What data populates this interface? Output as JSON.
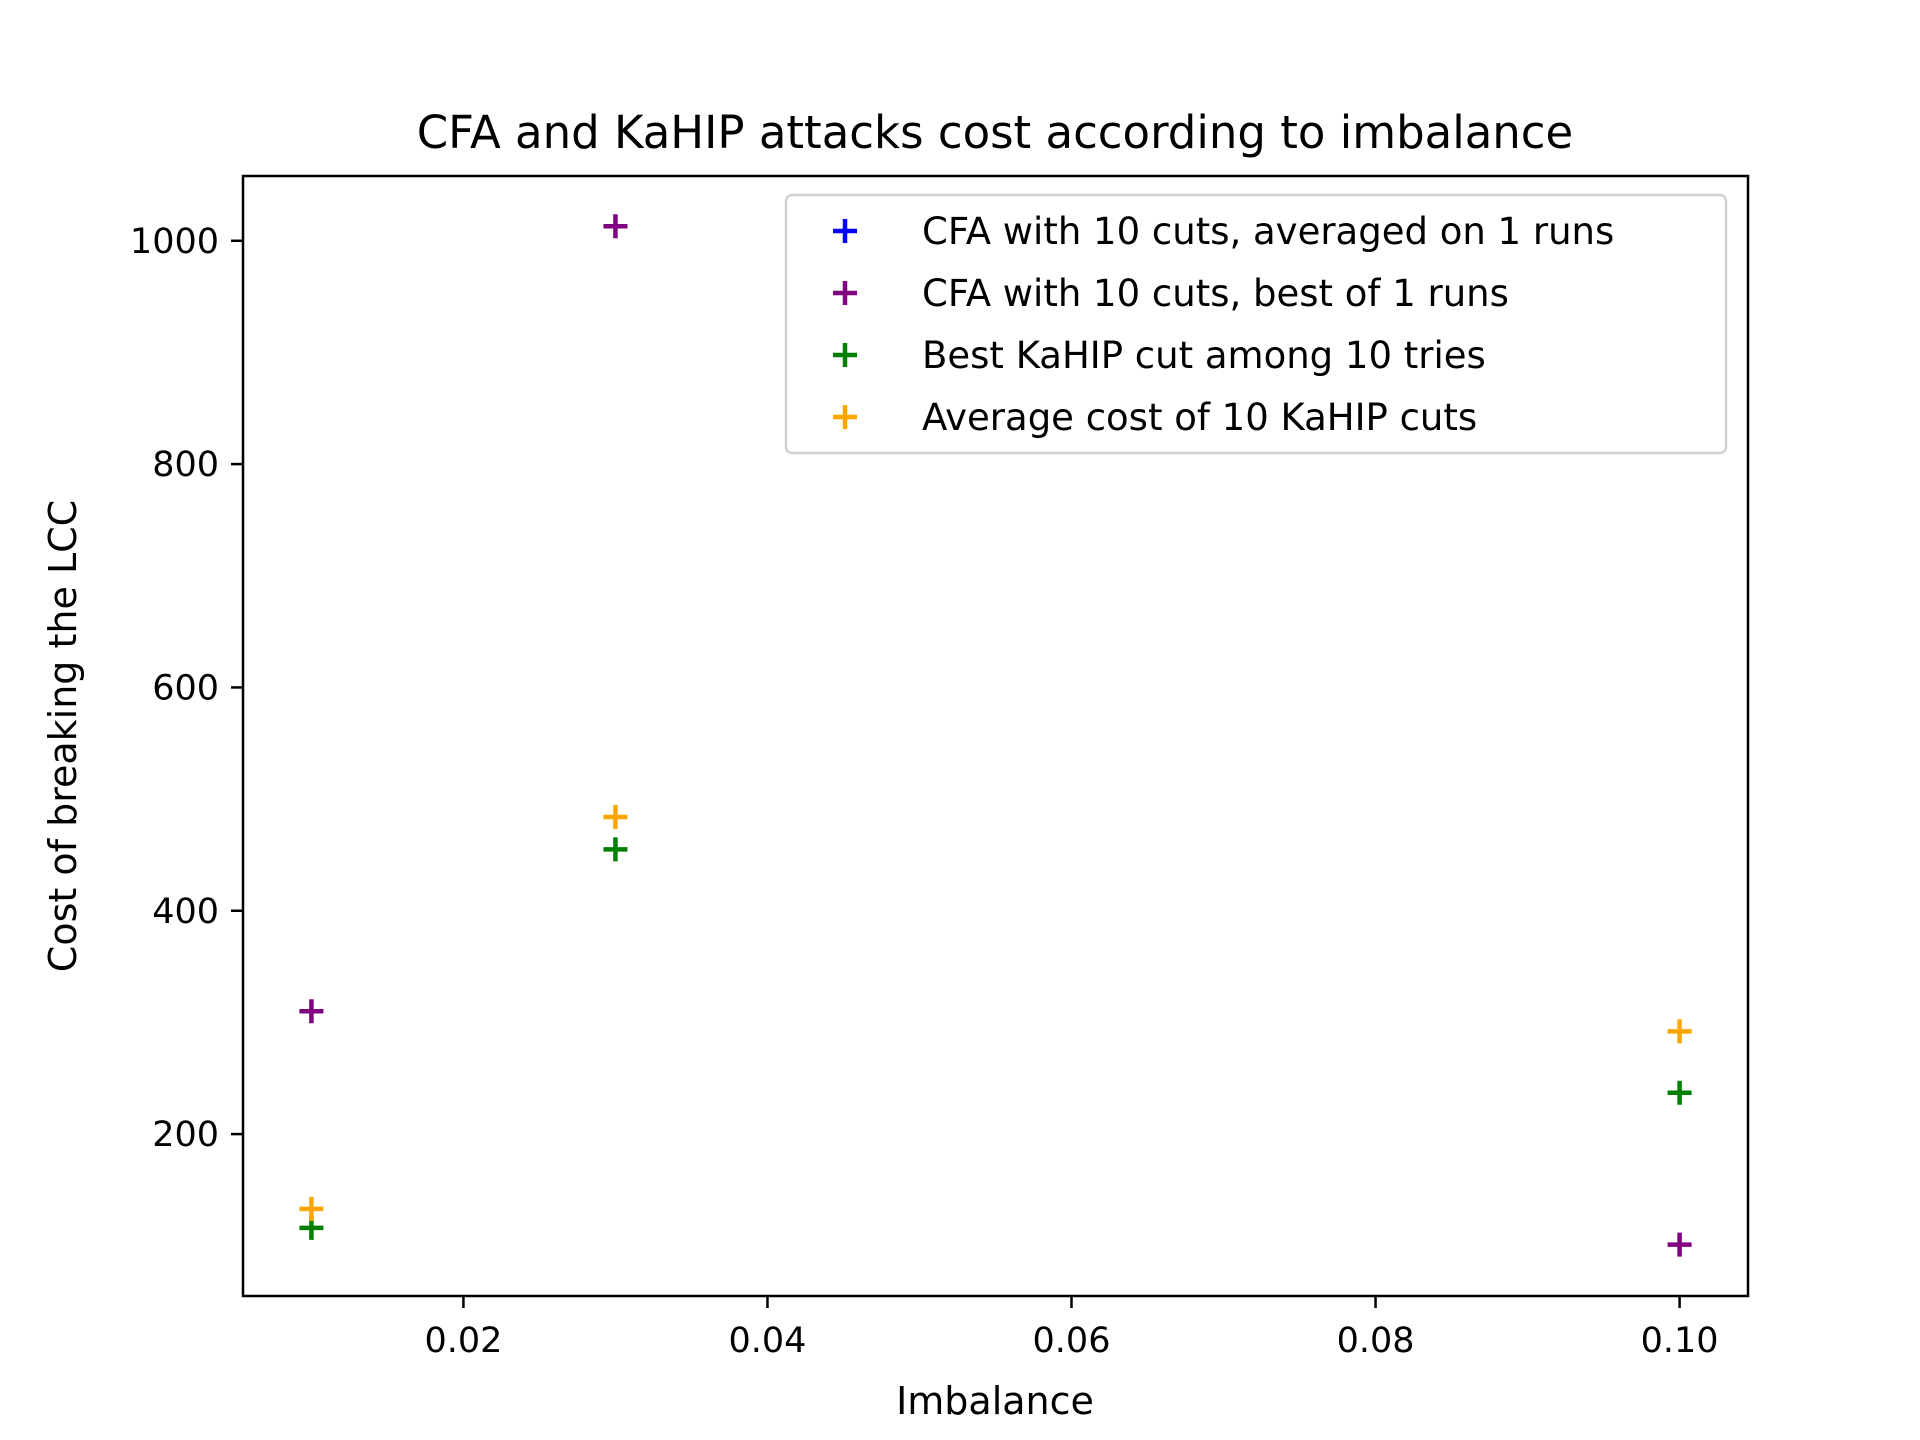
{
  "chart_data": {
    "type": "scatter",
    "title": "CFA and KaHIP attacks cost according to imbalance",
    "xlabel": "Imbalance",
    "ylabel": "Cost of breaking the LCC",
    "xlim": [
      0.0055,
      0.1045
    ],
    "ylim": [
      55,
      1058
    ],
    "xticks": [
      0.02,
      0.04,
      0.06,
      0.08,
      0.1
    ],
    "xtick_labels": [
      "0.02",
      "0.04",
      "0.06",
      "0.08",
      "0.10"
    ],
    "yticks": [
      200,
      400,
      600,
      800,
      1000
    ],
    "ytick_labels": [
      "200",
      "400",
      "600",
      "800",
      "1000"
    ],
    "legend_position": "top-right",
    "marker": "+",
    "series": [
      {
        "name": "CFA with 10 cuts, averaged on 1 runs",
        "color": "#0000ff",
        "x": [],
        "y": []
      },
      {
        "name": "CFA with 10 cuts, best of 1 runs",
        "color": "#800080",
        "x": [
          0.01,
          0.03,
          0.1
        ],
        "y": [
          310,
          1013,
          101
        ]
      },
      {
        "name": "Best KaHIP cut among 10 tries",
        "color": "#008000",
        "x": [
          0.01,
          0.03,
          0.1
        ],
        "y": [
          116,
          455,
          237
        ]
      },
      {
        "name": "Average cost of 10 KaHIP cuts",
        "color": "#ffa500",
        "x": [
          0.01,
          0.03,
          0.1
        ],
        "y": [
          133,
          484,
          292
        ]
      }
    ]
  }
}
